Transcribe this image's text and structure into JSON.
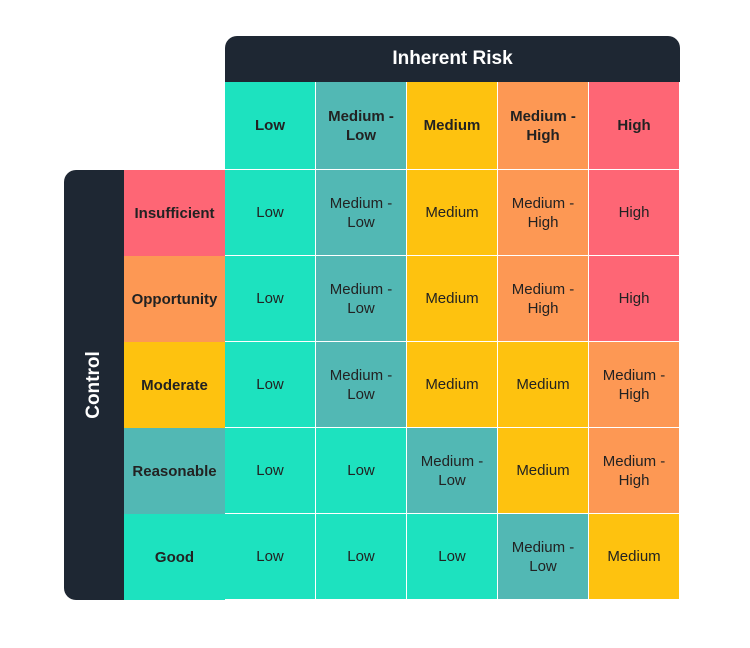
{
  "title": "Inherent Risk",
  "side_title": "Control",
  "colors": {
    "Low": "#1de2bf",
    "Medium - Low": "#52b8b4",
    "Medium": "#fec20f",
    "Medium - High": "#fd9854",
    "High": "#fe6675",
    "header_bg": "#1e2733"
  },
  "columns": [
    "Low",
    "Medium - Low",
    "Medium",
    "Medium - High",
    "High"
  ],
  "rows": [
    {
      "label": "Insufficient",
      "level": "High",
      "cells": [
        "Low",
        "Medium - Low",
        "Medium",
        "Medium - High",
        "High"
      ]
    },
    {
      "label": "Opportunity",
      "level": "Medium - High",
      "cells": [
        "Low",
        "Medium - Low",
        "Medium",
        "Medium - High",
        "High"
      ]
    },
    {
      "label": "Moderate",
      "level": "Medium",
      "cells": [
        "Low",
        "Medium - Low",
        "Medium",
        "Medium",
        "Medium - High"
      ]
    },
    {
      "label": "Reasonable",
      "level": "Medium - Low",
      "cells": [
        "Low",
        "Low",
        "Medium - Low",
        "Medium",
        "Medium - High"
      ]
    },
    {
      "label": "Good",
      "level": "Low",
      "cells": [
        "Low",
        "Low",
        "Low",
        "Medium - Low",
        "Medium"
      ]
    }
  ]
}
